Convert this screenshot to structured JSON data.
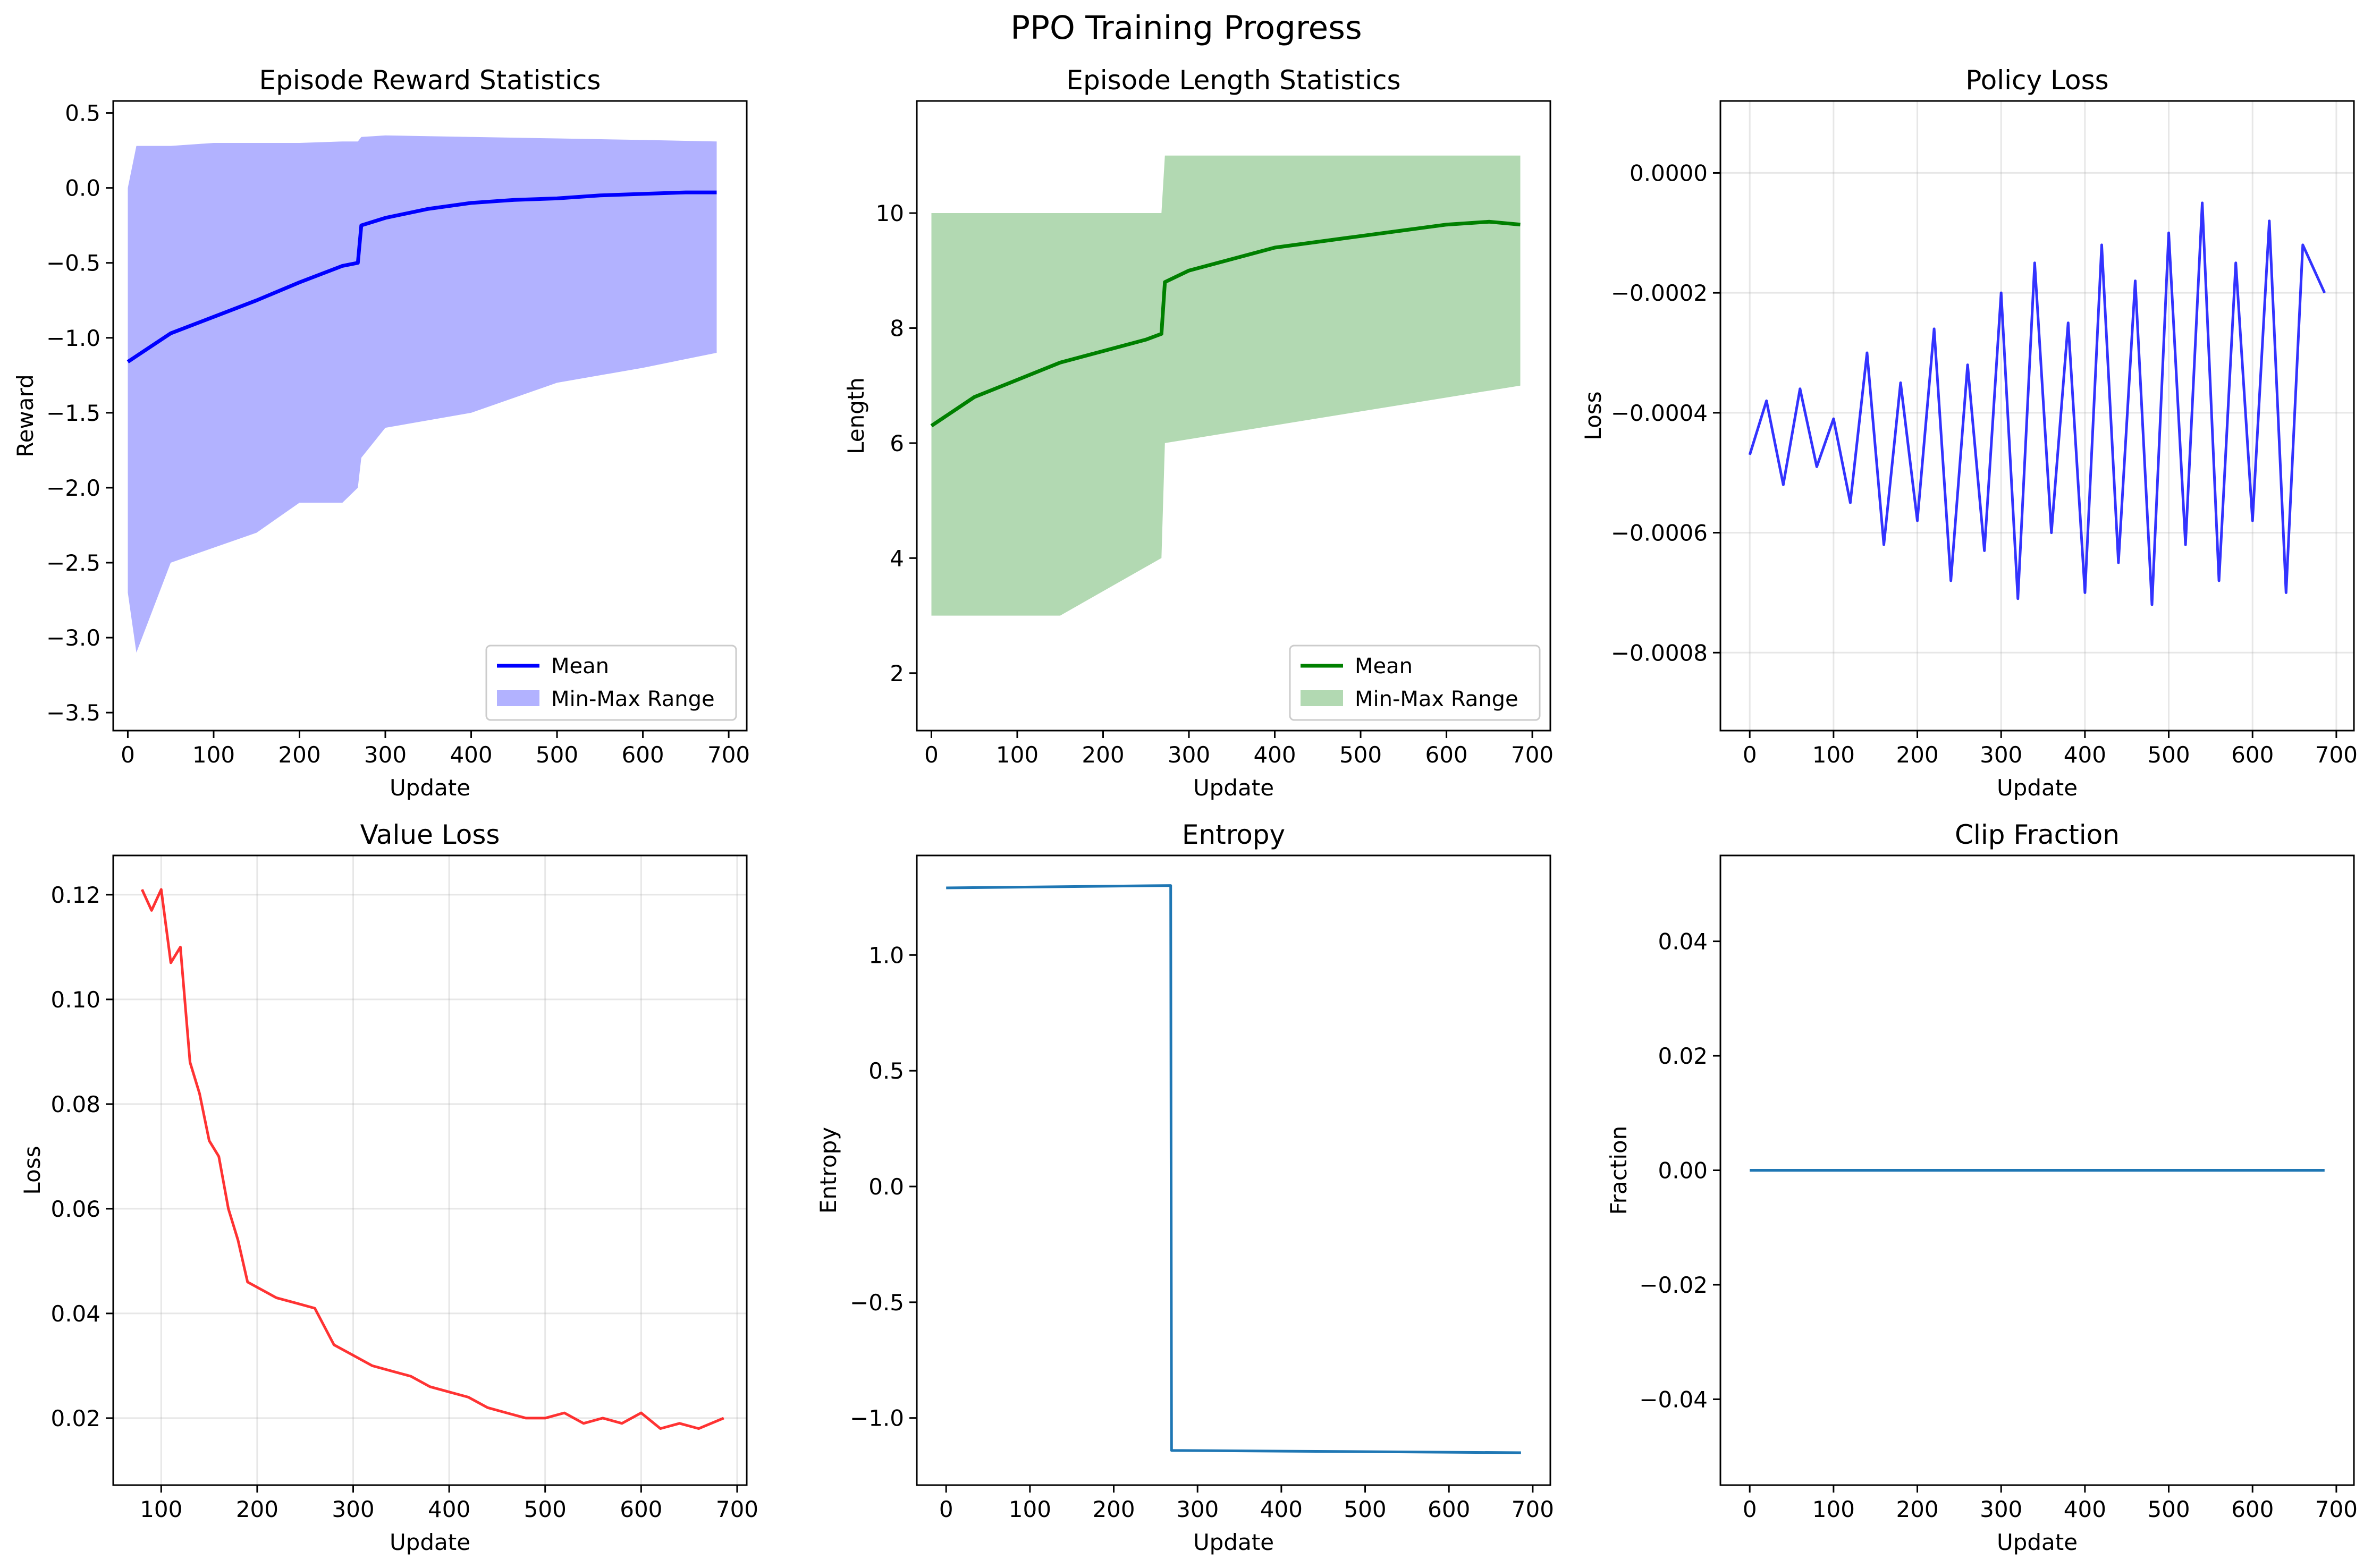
{
  "figure": {
    "title": "PPO Training Progress"
  },
  "chart_data": [
    {
      "id": "reward",
      "type": "line",
      "title": "Episode Reward Statistics",
      "xlabel": "Update",
      "ylabel": "Reward",
      "xlim": [
        -17,
        721
      ],
      "ylim": [
        -3.62,
        0.58
      ],
      "xticks": [
        0,
        100,
        200,
        300,
        400,
        500,
        600,
        700
      ],
      "yticks": [
        0.5,
        0.0,
        -0.5,
        -1.0,
        -1.5,
        -2.0,
        -2.5,
        -3.0,
        -3.5
      ],
      "ytick_labels": [
        "0.5",
        "0.0",
        "−0.5",
        "−1.0",
        "−1.5",
        "−2.0",
        "−2.5",
        "−3.0",
        "−3.5"
      ],
      "grid": false,
      "legend": {
        "position": "lower right",
        "entries": [
          "Mean",
          "Min-Max Range"
        ]
      },
      "series": [
        {
          "name": "Mean",
          "kind": "line",
          "color": "#0000ff",
          "x": [
            0,
            50,
            100,
            150,
            200,
            250,
            268,
            272,
            300,
            350,
            400,
            450,
            500,
            550,
            600,
            650,
            686
          ],
          "values": [
            -1.16,
            -0.97,
            -0.86,
            -0.75,
            -0.63,
            -0.52,
            -0.5,
            -0.25,
            -0.2,
            -0.14,
            -0.1,
            -0.08,
            -0.07,
            -0.05,
            -0.04,
            -0.03,
            -0.03
          ]
        },
        {
          "name": "Min-Max Range",
          "kind": "band",
          "color": "#0000ff",
          "opacity": 0.3,
          "x": [
            0,
            10,
            50,
            100,
            150,
            200,
            250,
            268,
            272,
            300,
            400,
            500,
            600,
            686
          ],
          "upper": [
            0.0,
            0.28,
            0.28,
            0.3,
            0.3,
            0.3,
            0.31,
            0.31,
            0.34,
            0.35,
            0.34,
            0.33,
            0.32,
            0.31
          ],
          "lower": [
            -2.7,
            -3.1,
            -2.5,
            -2.4,
            -2.3,
            -2.1,
            -2.1,
            -2.0,
            -1.8,
            -1.6,
            -1.5,
            -1.3,
            -1.2,
            -1.1
          ]
        }
      ]
    },
    {
      "id": "length",
      "type": "line",
      "title": "Episode Length Statistics",
      "xlabel": "Update",
      "ylabel": "Length",
      "xlim": [
        -17,
        721
      ],
      "ylim": [
        1.0,
        11.95
      ],
      "xticks": [
        0,
        100,
        200,
        300,
        400,
        500,
        600,
        700
      ],
      "yticks": [
        2,
        4,
        6,
        8,
        10
      ],
      "ytick_labels": [
        "2",
        "4",
        "6",
        "8",
        "10"
      ],
      "grid": false,
      "legend": {
        "position": "lower right",
        "entries": [
          "Mean",
          "Min-Max Range"
        ]
      },
      "series": [
        {
          "name": "Mean",
          "kind": "line",
          "color": "#008000",
          "x": [
            0,
            50,
            100,
            150,
            200,
            250,
            268,
            272,
            300,
            350,
            400,
            450,
            500,
            550,
            600,
            650,
            686
          ],
          "values": [
            6.3,
            6.8,
            7.1,
            7.4,
            7.6,
            7.8,
            7.9,
            8.8,
            9.0,
            9.2,
            9.4,
            9.5,
            9.6,
            9.7,
            9.8,
            9.85,
            9.8
          ]
        },
        {
          "name": "Min-Max Range",
          "kind": "band",
          "color": "#008000",
          "opacity": 0.3,
          "x": [
            0,
            150,
            268,
            272,
            686
          ],
          "upper": [
            10,
            10,
            10,
            11,
            11
          ],
          "lower": [
            3,
            3,
            4,
            6,
            7
          ]
        }
      ]
    },
    {
      "id": "policy-loss",
      "type": "line",
      "title": "Policy Loss",
      "xlabel": "Update",
      "ylabel": "Loss",
      "xlim": [
        -35,
        721
      ],
      "ylim": [
        -0.00093,
        0.00012
      ],
      "xticks": [
        0,
        100,
        200,
        300,
        400,
        500,
        600,
        700
      ],
      "yticks": [
        0.0,
        -0.0002,
        -0.0004,
        -0.0006,
        -0.0008
      ],
      "ytick_labels": [
        "0.0000",
        "−0.0002",
        "−0.0004",
        "−0.0006",
        "−0.0008"
      ],
      "grid": true,
      "series": [
        {
          "kind": "line",
          "color": "#0000ff",
          "opacity": 0.8,
          "x": [
            0,
            20,
            40,
            60,
            80,
            100,
            120,
            140,
            160,
            180,
            200,
            220,
            240,
            260,
            280,
            300,
            320,
            340,
            360,
            380,
            400,
            420,
            440,
            460,
            480,
            500,
            520,
            540,
            560,
            580,
            600,
            620,
            640,
            660,
            686
          ],
          "values": [
            -0.00047,
            -0.00038,
            -0.00052,
            -0.00036,
            -0.00049,
            -0.00041,
            -0.00055,
            -0.0003,
            -0.00062,
            -0.00035,
            -0.00058,
            -0.00026,
            -0.00068,
            -0.00032,
            -0.00063,
            -0.0002,
            -0.00071,
            -0.00015,
            -0.0006,
            -0.00025,
            -0.0007,
            -0.00012,
            -0.00065,
            -0.00018,
            -0.00072,
            -0.0001,
            -0.00062,
            -5e-05,
            -0.00068,
            -0.00015,
            -0.00058,
            -8e-05,
            -0.0007,
            -0.00012,
            -0.0002
          ]
        }
      ]
    },
    {
      "id": "value-loss",
      "type": "line",
      "title": "Value Loss",
      "xlabel": "Update",
      "ylabel": "Loss",
      "xlim": [
        50,
        710
      ],
      "ylim": [
        0.0072,
        0.1275
      ],
      "xticks": [
        100,
        200,
        300,
        400,
        500,
        600,
        700
      ],
      "yticks": [
        0.02,
        0.04,
        0.06,
        0.08,
        0.1,
        0.12
      ],
      "ytick_labels": [
        "0.02",
        "0.04",
        "0.06",
        "0.08",
        "0.10",
        "0.12"
      ],
      "grid": true,
      "series": [
        {
          "kind": "line",
          "color": "#ff0000",
          "opacity": 0.8,
          "x": [
            80,
            90,
            100,
            110,
            120,
            130,
            140,
            150,
            160,
            170,
            180,
            190,
            200,
            220,
            240,
            260,
            280,
            300,
            320,
            340,
            360,
            380,
            400,
            420,
            440,
            460,
            480,
            500,
            520,
            540,
            560,
            580,
            600,
            620,
            640,
            660,
            686
          ],
          "values": [
            0.121,
            0.117,
            0.121,
            0.107,
            0.11,
            0.088,
            0.082,
            0.073,
            0.07,
            0.06,
            0.054,
            0.046,
            0.045,
            0.043,
            0.042,
            0.041,
            0.034,
            0.032,
            0.03,
            0.029,
            0.028,
            0.026,
            0.025,
            0.024,
            0.022,
            0.021,
            0.02,
            0.02,
            0.021,
            0.019,
            0.02,
            0.019,
            0.021,
            0.018,
            0.019,
            0.018,
            0.02
          ]
        }
      ]
    },
    {
      "id": "entropy",
      "type": "line",
      "title": "Entropy",
      "xlabel": "Update",
      "ylabel": "Entropy",
      "xlim": [
        -35,
        721
      ],
      "ylim": [
        -1.29,
        1.43
      ],
      "xticks": [
        0,
        100,
        200,
        300,
        400,
        500,
        600,
        700
      ],
      "yticks": [
        1.0,
        0.5,
        0.0,
        -0.5,
        -1.0
      ],
      "ytick_labels": [
        "1.0",
        "0.5",
        "0.0",
        "−0.5",
        "−1.0"
      ],
      "grid": false,
      "series": [
        {
          "kind": "line",
          "color": "#1f77b4",
          "x": [
            0,
            268,
            269,
            686
          ],
          "values": [
            1.29,
            1.3,
            -1.14,
            -1.15
          ]
        }
      ]
    },
    {
      "id": "clip-fraction",
      "type": "line",
      "title": "Clip Fraction",
      "xlabel": "Update",
      "ylabel": "Fraction",
      "xlim": [
        -35,
        721
      ],
      "ylim": [
        -0.055,
        0.055
      ],
      "xticks": [
        0,
        100,
        200,
        300,
        400,
        500,
        600,
        700
      ],
      "yticks": [
        0.04,
        0.02,
        0.0,
        -0.02,
        -0.04
      ],
      "ytick_labels": [
        "0.04",
        "0.02",
        "0.00",
        "−0.02",
        "−0.04"
      ],
      "grid": false,
      "series": [
        {
          "kind": "line",
          "color": "#1f77b4",
          "x": [
            0,
            686
          ],
          "values": [
            0.0,
            0.0
          ]
        }
      ]
    }
  ]
}
